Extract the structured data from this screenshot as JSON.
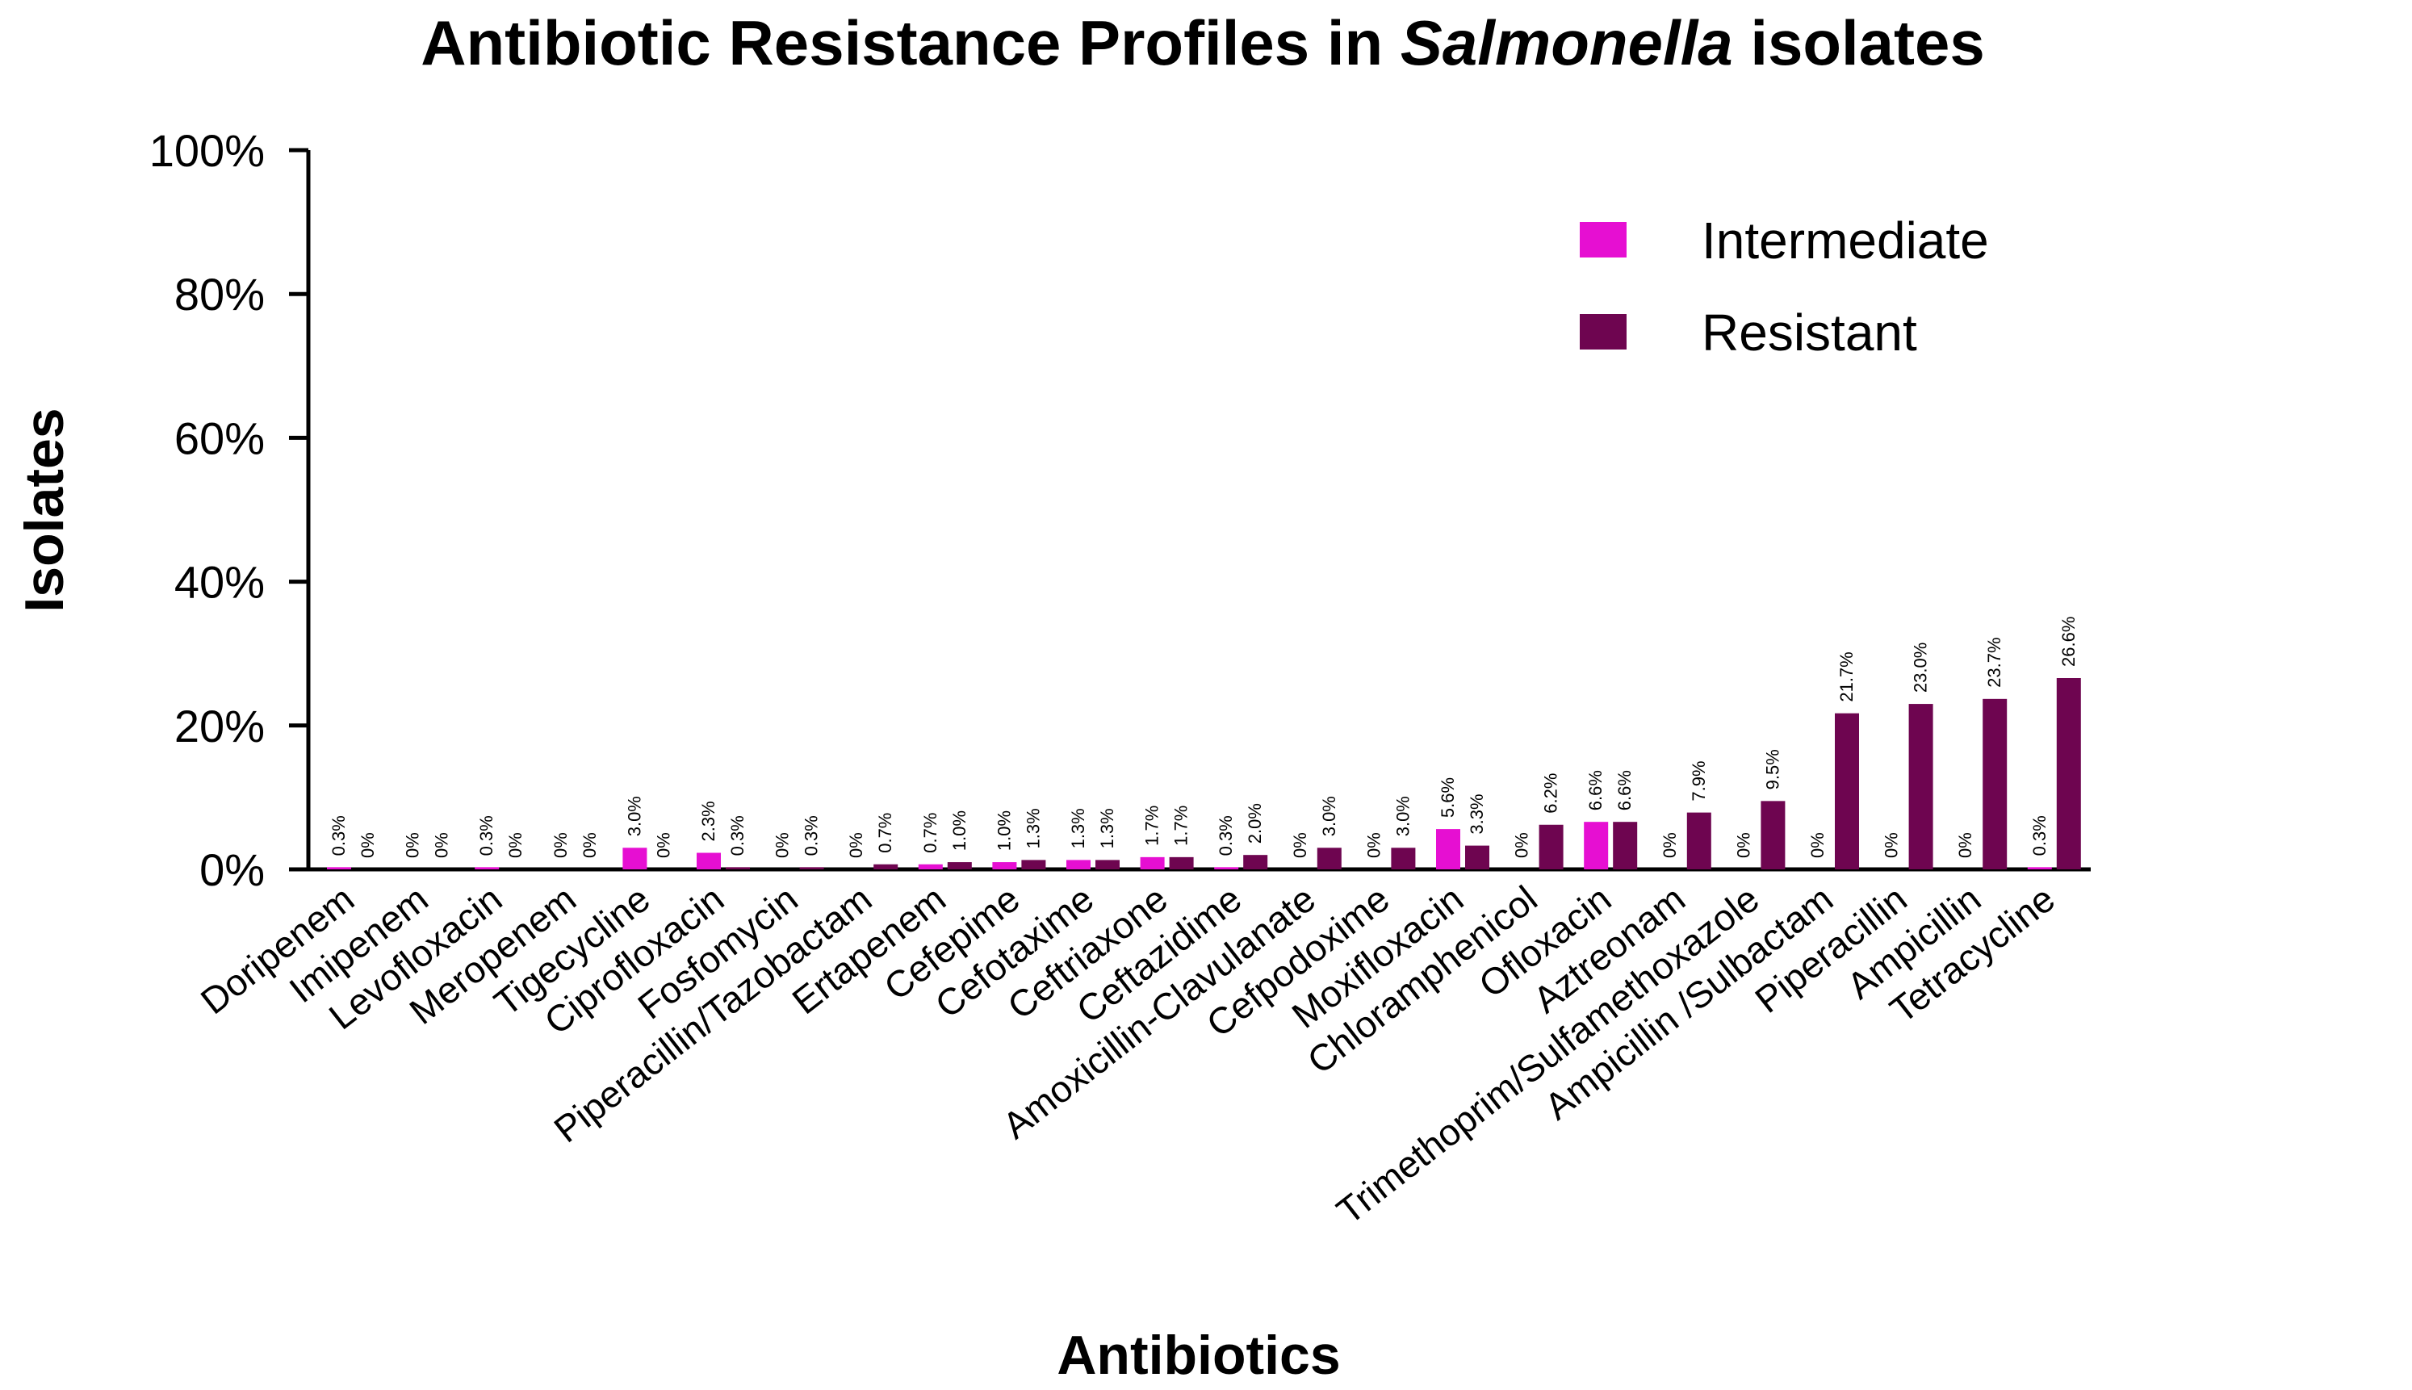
{
  "chart_data": {
    "type": "bar",
    "title": "Antibiotic Resistance Profiles in",
    "title_italic": "Salmonella",
    "title_end": "isolates",
    "xlabel": "Antibiotics",
    "ylabel": "Isolates",
    "ylim": [
      0,
      100
    ],
    "yticks": [
      0,
      20,
      40,
      60,
      80,
      100
    ],
    "ytick_labels": [
      "0%",
      "20%",
      "40%",
      "60%",
      "80%",
      "100%"
    ],
    "grid": false,
    "legend_position": "top-right",
    "colors": {
      "Intermediate": "#e60fd2",
      "Resistant": "#6e0550"
    },
    "categories": [
      "Doripenem",
      "Imipenem",
      "Levofloxacin",
      "Meropenem",
      "Tigecycline",
      "Ciprofloxacin",
      "Fosfomycin",
      "Piperacillin/Tazobactam",
      "Ertapenem",
      "Cefepime",
      "Cefotaxime",
      "Ceftriaxone",
      "Ceftazidime",
      "Amoxicillin-Clavulanate",
      "Cefpodoxime",
      "Moxifloxacin",
      "Chloramphenicol",
      "Ofloxacin",
      "Aztreonam",
      "Trimethoprim/Sulfamethoxazole",
      "Ampicillin /Sulbactam",
      "Piperacillin",
      "Ampicillin",
      "Tetracycline"
    ],
    "series": [
      {
        "name": "Intermediate",
        "values": [
          0.3,
          0,
          0.3,
          0,
          3.0,
          2.3,
          0,
          0,
          0.7,
          1.0,
          1.3,
          1.7,
          0.3,
          0,
          0,
          5.6,
          0,
          6.6,
          0,
          0,
          0,
          0,
          0,
          0.3
        ],
        "labels": [
          "0.3%",
          "0%",
          "0.3%",
          "0%",
          "3.0%",
          "2.3%",
          "0%",
          "0%",
          "0.7%",
          "1.0%",
          "1.3%",
          "1.7%",
          "0.3%",
          "0%",
          "0%",
          "5.6%",
          "0%",
          "6.6%",
          "0%",
          "0%",
          "0%",
          "0%",
          "0%",
          "0.3%"
        ]
      },
      {
        "name": "Resistant",
        "values": [
          0,
          0,
          0,
          0,
          0,
          0.3,
          0.3,
          0.7,
          1.0,
          1.3,
          1.3,
          1.7,
          2.0,
          3.0,
          3.0,
          3.3,
          6.2,
          6.6,
          7.9,
          9.5,
          21.7,
          23.0,
          23.7,
          26.6
        ],
        "labels": [
          "0%",
          "0%",
          "0%",
          "0%",
          "0%",
          "0.3%",
          "0.3%",
          "0.7%",
          "1.0%",
          "1.3%",
          "1.3%",
          "1.7%",
          "2.0%",
          "3.0%",
          "3.0%",
          "3.3%",
          "6.2%",
          "6.6%",
          "7.9%",
          "9.5%",
          "21.7%",
          "23.0%",
          "23.7%",
          "26.6%"
        ]
      }
    ]
  }
}
